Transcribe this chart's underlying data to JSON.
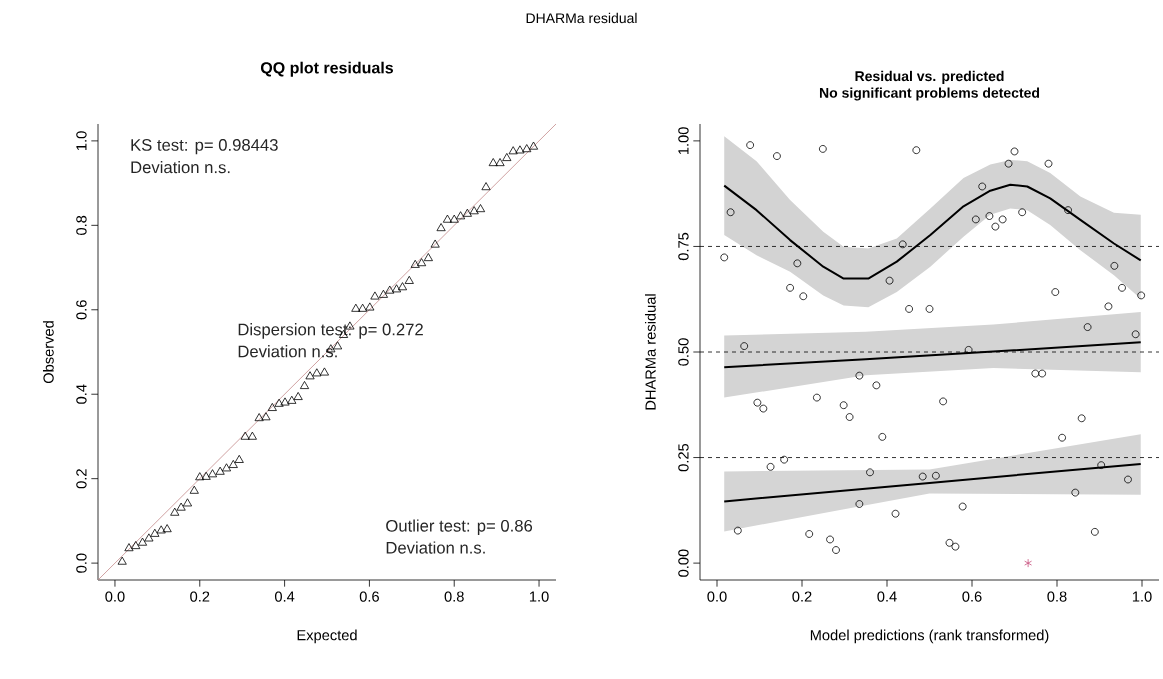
{
  "chart_data": [
    {
      "type": "scatter",
      "title": "QQ plot residuals",
      "xlabel": "Expected",
      "ylabel": "Observed",
      "annotations": [
        "DHARMa residual",
        "KS test: p= 0.98443",
        "Deviation n.s.",
        "Dispersion test: p= 0.272",
        "Deviation n.s.",
        "Outlier test: p= 0.86",
        "Deviation n.s."
      ],
      "xlim": [
        -0.04,
        1.04
      ],
      "ylim": [
        -0.04,
        1.04
      ],
      "xticks": [
        {
          "value": 0,
          "label": "0.0"
        },
        {
          "value": 0.2,
          "label": "0.2"
        },
        {
          "value": 0.4,
          "label": "0.4"
        },
        {
          "value": 0.6,
          "label": "0.6"
        },
        {
          "value": 0.8,
          "label": "0.8"
        },
        {
          "value": 1,
          "label": "1.0"
        }
      ],
      "yticks": [
        {
          "value": 0,
          "label": "0.0"
        },
        {
          "value": 0.2,
          "label": "0.2"
        },
        {
          "value": 0.4,
          "label": "0.4"
        },
        {
          "value": 0.6,
          "label": "0.6"
        },
        {
          "value": 0.8,
          "label": "0.8"
        },
        {
          "value": 1,
          "label": "1.0"
        }
      ],
      "series": [
        {
          "type": "scatter",
          "marker": "triangle",
          "color": "#000000",
          "x": [
            0.017,
            0.033,
            0.049,
            0.065,
            0.08,
            0.094,
            0.109,
            0.123,
            0.141,
            0.156,
            0.171,
            0.187,
            0.2,
            0.215,
            0.23,
            0.248,
            0.263,
            0.279,
            0.293,
            0.307,
            0.324,
            0.34,
            0.356,
            0.371,
            0.387,
            0.401,
            0.417,
            0.432,
            0.447,
            0.46,
            0.476,
            0.494,
            0.509,
            0.525,
            0.539,
            0.554,
            0.568,
            0.584,
            0.601,
            0.613,
            0.633,
            0.648,
            0.664,
            0.678,
            0.694,
            0.708,
            0.723,
            0.739,
            0.755,
            0.769,
            0.784,
            0.8,
            0.815,
            0.831,
            0.847,
            0.862,
            0.875,
            0.892,
            0.908,
            0.924,
            0.939,
            0.955,
            0.971,
            0.987
          ],
          "values": [
            0.003,
            0.035,
            0.04,
            0.048,
            0.058,
            0.069,
            0.077,
            0.08,
            0.119,
            0.131,
            0.141,
            0.171,
            0.203,
            0.204,
            0.21,
            0.216,
            0.224,
            0.232,
            0.244,
            0.299,
            0.299,
            0.343,
            0.345,
            0.367,
            0.377,
            0.38,
            0.384,
            0.393,
            0.419,
            0.442,
            0.449,
            0.451,
            0.506,
            0.513,
            0.54,
            0.56,
            0.602,
            0.602,
            0.605,
            0.631,
            0.635,
            0.645,
            0.648,
            0.653,
            0.668,
            0.706,
            0.71,
            0.722,
            0.754,
            0.793,
            0.813,
            0.813,
            0.821,
            0.827,
            0.833,
            0.838,
            0.89,
            0.947,
            0.947,
            0.959,
            0.975,
            0.977,
            0.98,
            0.986
          ]
        },
        {
          "type": "line",
          "color": "#c48a8a",
          "x": [
            -0.04,
            1.04
          ],
          "values": [
            -0.04,
            1.04
          ]
        }
      ]
    },
    {
      "type": "scatter",
      "title": "Residual vs. predicted",
      "subtitle": "No significant problems detected",
      "xlabel": "Model predictions (rank transformed)",
      "ylabel": "DHARMa residual",
      "xlim": [
        -0.04,
        1.04
      ],
      "ylim": [
        -0.04,
        1.04
      ],
      "xticks": [
        {
          "value": 0,
          "label": "0.0"
        },
        {
          "value": 0.2,
          "label": "0.2"
        },
        {
          "value": 0.4,
          "label": "0.4"
        },
        {
          "value": 0.6,
          "label": "0.6"
        },
        {
          "value": 0.8,
          "label": "0.8"
        },
        {
          "value": 1,
          "label": "1.0"
        }
      ],
      "yticks": [
        {
          "value": 0,
          "label": "0.00"
        },
        {
          "value": 0.25,
          "label": "0.25"
        },
        {
          "value": 0.5,
          "label": "0.50"
        },
        {
          "value": 0.75,
          "label": "0.75"
        },
        {
          "value": 1,
          "label": "1.00"
        }
      ],
      "ref_lines": [
        {
          "axis": "y",
          "value": 0.25,
          "line_style": "dashed"
        },
        {
          "axis": "y",
          "value": 0.5,
          "line_style": "dashed"
        },
        {
          "axis": "y",
          "value": 0.75,
          "line_style": "dashed"
        }
      ],
      "series": [
        {
          "type": "line",
          "color": "#000000",
          "x": [
            0.017,
            0.093,
            0.172,
            0.25,
            0.298,
            0.356,
            0.423,
            0.502,
            0.58,
            0.643,
            0.69,
            0.73,
            0.784,
            0.855,
            0.934,
            0.997
          ],
          "values": [
            0.894,
            0.836,
            0.765,
            0.702,
            0.674,
            0.674,
            0.714,
            0.777,
            0.845,
            0.882,
            0.896,
            0.892,
            0.864,
            0.813,
            0.757,
            0.717
          ],
          "lower": [
            0.777,
            0.729,
            0.69,
            0.634,
            0.61,
            0.606,
            0.642,
            0.702,
            0.773,
            0.825,
            0.84,
            0.836,
            0.801,
            0.741,
            0.682,
            0.626
          ],
          "upper": [
            1.011,
            0.952,
            0.86,
            0.785,
            0.749,
            0.745,
            0.769,
            0.84,
            0.912,
            0.944,
            0.955,
            0.952,
            0.924,
            0.868,
            0.83,
            0.825
          ]
        },
        {
          "type": "line",
          "color": "#000000",
          "x": [
            0.017,
            0.35,
            0.65,
            0.997
          ],
          "values": [
            0.464,
            0.483,
            0.501,
            0.523
          ],
          "lower": [
            0.392,
            0.445,
            0.462,
            0.452
          ],
          "upper": [
            0.539,
            0.548,
            0.565,
            0.595
          ]
        },
        {
          "type": "line",
          "color": "#000000",
          "x": [
            0.017,
            0.5,
            0.997
          ],
          "values": [
            0.146,
            0.19,
            0.235
          ],
          "lower": [
            0.075,
            0.165,
            0.162
          ],
          "upper": [
            0.217,
            0.222,
            0.305
          ]
        },
        {
          "type": "scatter",
          "marker": "circle",
          "color": "#000000",
          "x": [
            0.078,
            0.141,
            0.249,
            0.469,
            0.7,
            0.686,
            0.78,
            0.624,
            0.032,
            0.609,
            0.641,
            0.655,
            0.672,
            0.718,
            0.826,
            0.017,
            0.437,
            0.189,
            0.172,
            0.203,
            0.406,
            0.452,
            0.5,
            0.796,
            0.935,
            0.953,
            0.998,
            0.921,
            0.872,
            0.985,
            0.064,
            0.592,
            0.335,
            0.375,
            0.749,
            0.765,
            0.095,
            0.109,
            0.235,
            0.298,
            0.312,
            0.532,
            0.858,
            0.389,
            0.812,
            0.158,
            0.126,
            0.36,
            0.484,
            0.515,
            0.904,
            0.967,
            0.843,
            0.335,
            0.578,
            0.42,
            0.049,
            0.889,
            0.217,
            0.266,
            0.28,
            0.547,
            0.561
          ],
          "values": [
            0.99,
            0.964,
            0.981,
            0.978,
            0.975,
            0.946,
            0.946,
            0.892,
            0.831,
            0.814,
            0.822,
            0.797,
            0.814,
            0.831,
            0.836,
            0.724,
            0.755,
            0.71,
            0.652,
            0.632,
            0.669,
            0.602,
            0.602,
            0.642,
            0.704,
            0.652,
            0.634,
            0.608,
            0.559,
            0.542,
            0.514,
            0.505,
            0.444,
            0.421,
            0.449,
            0.449,
            0.38,
            0.366,
            0.392,
            0.374,
            0.346,
            0.383,
            0.343,
            0.299,
            0.297,
            0.245,
            0.228,
            0.215,
            0.205,
            0.207,
            0.232,
            0.198,
            0.167,
            0.14,
            0.134,
            0.117,
            0.077,
            0.074,
            0.069,
            0.056,
            0.031,
            0.048,
            0.039
          ]
        },
        {
          "type": "scatter",
          "marker": "cross",
          "color": "#c8507e",
          "x": [
            0.732
          ],
          "values": [
            0.0
          ]
        }
      ]
    }
  ]
}
